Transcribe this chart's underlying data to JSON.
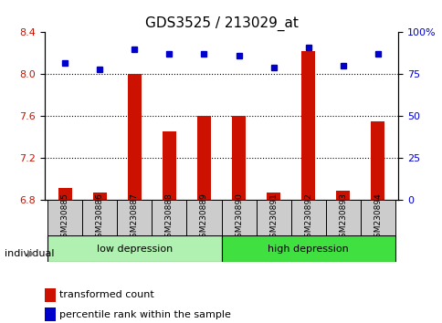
{
  "title": "GDS3525 / 213029_at",
  "samples": [
    "GSM230885",
    "GSM230886",
    "GSM230887",
    "GSM230888",
    "GSM230889",
    "GSM230890",
    "GSM230891",
    "GSM230892",
    "GSM230893",
    "GSM230894"
  ],
  "transformed_count": [
    6.92,
    6.87,
    8.0,
    7.46,
    7.6,
    7.6,
    6.87,
    8.22,
    6.89,
    7.55
  ],
  "percentile_rank": [
    82,
    78,
    90,
    87,
    87,
    86,
    79,
    91,
    80,
    87
  ],
  "ylim_left": [
    6.8,
    8.4
  ],
  "ylim_right": [
    0,
    100
  ],
  "yticks_left": [
    6.8,
    7.2,
    7.6,
    8.0,
    8.4
  ],
  "yticks_right": [
    0,
    25,
    50,
    75,
    100
  ],
  "ytick_labels_right": [
    "0",
    "25",
    "50",
    "75",
    "100%"
  ],
  "hlines": [
    8.0,
    7.6,
    7.2
  ],
  "group1_label": "low depression",
  "group2_label": "high depression",
  "group1_indices": [
    0,
    1,
    2,
    3,
    4
  ],
  "group2_indices": [
    5,
    6,
    7,
    8,
    9
  ],
  "group1_color": "#b0f0b0",
  "group2_color": "#40e040",
  "bar_color": "#cc1100",
  "dot_color": "#0000cc",
  "bar_width": 0.4,
  "individual_label": "individual",
  "legend_bar_label": "transformed count",
  "legend_dot_label": "percentile rank within the sample",
  "xlabel_color": "#cc1100",
  "ylabel_right_color": "#0000cc",
  "bg_axes": "#ffffff",
  "tick_label_bg": "#cccccc"
}
